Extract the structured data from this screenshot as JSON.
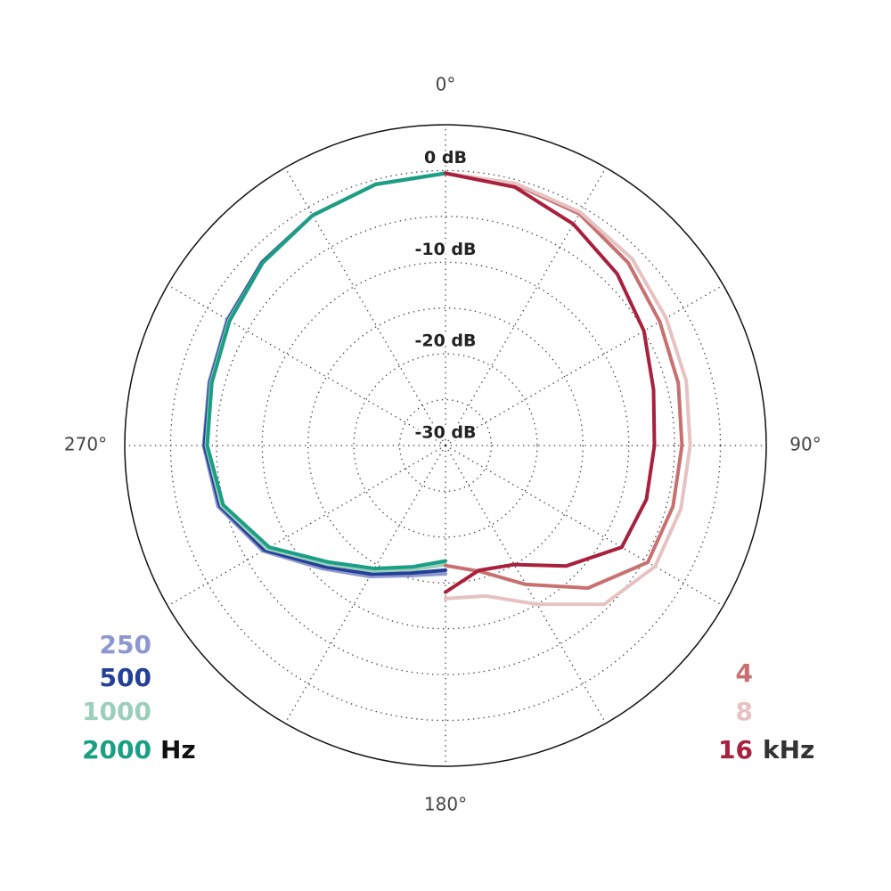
{
  "chart_data": {
    "type": "polar",
    "rlim": [
      -30,
      5
    ],
    "rticks": [
      {
        "value": 0,
        "label": "0 dB"
      },
      {
        "value": -10,
        "label": "-10 dB"
      },
      {
        "value": -20,
        "label": "-20 dB"
      },
      {
        "value": -30,
        "label": "-30 dB"
      }
    ],
    "minor_rticks": [
      -5,
      -15,
      -25
    ],
    "thetaticks": [
      {
        "value": 0,
        "label": "0°"
      },
      {
        "value": 90,
        "label": "90°"
      },
      {
        "value": 180,
        "label": "180°"
      },
      {
        "value": 270,
        "label": "270°"
      }
    ],
    "minor_thetaticks": [
      30,
      60,
      120,
      150,
      210,
      240,
      300,
      330
    ],
    "legend_units": [
      "Hz",
      "kHz"
    ],
    "series": [
      {
        "name": "250",
        "color": "#8f97d0",
        "theta": [
          360,
          345,
          330,
          315,
          300,
          285,
          270,
          255,
          240,
          225,
          210,
          195,
          180
        ],
        "values": [
          -0.3,
          -0.5,
          -1,
          -1.7,
          -2.5,
          -3.3,
          -3.6,
          -4.3,
          -7,
          -11,
          -13.5,
          -15.3,
          -16
        ]
      },
      {
        "name": "500",
        "color": "#233f96",
        "theta": [
          360,
          345,
          330,
          315,
          300,
          285,
          270,
          255,
          240,
          225,
          210,
          195,
          180
        ],
        "values": [
          -0.3,
          -0.5,
          -1,
          -1.7,
          -2.6,
          -3.4,
          -3.7,
          -4.5,
          -7.2,
          -11.3,
          -13.8,
          -15.6,
          -16.4
        ]
      },
      {
        "name": "1000",
        "color": "#9bcfbc",
        "theta": [
          360,
          345,
          330,
          315,
          300,
          285,
          270,
          255,
          240,
          225,
          210,
          195,
          180
        ],
        "values": [
          -0.3,
          -0.5,
          -1,
          -1.8,
          -2.7,
          -3.5,
          -3.9,
          -4.7,
          -7.5,
          -11.7,
          -14.2,
          -16,
          -17
        ]
      },
      {
        "name": "2000",
        "color": "#1a9e84",
        "theta": [
          360,
          345,
          330,
          315,
          300,
          285,
          270,
          255,
          240,
          225,
          210,
          195,
          180
        ],
        "values": [
          -0.3,
          -0.5,
          -1,
          -1.8,
          -2.8,
          -3.6,
          -4,
          -4.9,
          -7.8,
          -12,
          -14.5,
          -16.3,
          -17.4
        ]
      },
      {
        "name": "4",
        "color": "#c87070",
        "theta": [
          0,
          15,
          30,
          45,
          60,
          75,
          90,
          105,
          120,
          135,
          150,
          165,
          180
        ],
        "values": [
          -0.3,
          -0.5,
          -0.8,
          -1.8,
          -3,
          -3.7,
          -4.2,
          -4.3,
          -4.5,
          -8,
          -12.5,
          -15.8,
          -16.9
        ]
      },
      {
        "name": "8",
        "color": "#e6c2c2",
        "theta": [
          0,
          15,
          30,
          45,
          60,
          75,
          90,
          105,
          120,
          135,
          150,
          165,
          180
        ],
        "values": [
          -0.3,
          -0.4,
          -0.6,
          -1.2,
          -2.2,
          -2.8,
          -3.3,
          -3.4,
          -3.6,
          -5.5,
          -10,
          -13,
          -13.3
        ]
      },
      {
        "name": "16",
        "color": "#a8203c",
        "theta": [
          0,
          15,
          30,
          45,
          60,
          75,
          90,
          105,
          120,
          135,
          150,
          165,
          180
        ],
        "values": [
          -0.3,
          -0.8,
          -2.1,
          -3.5,
          -5,
          -6.5,
          -7.2,
          -7.3,
          -7.8,
          -11.4,
          -15,
          -15.9,
          -14
        ]
      }
    ]
  }
}
